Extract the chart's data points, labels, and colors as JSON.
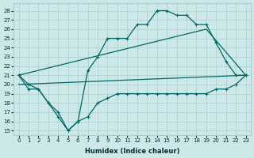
{
  "xlabel": "Humidex (Indice chaleur)",
  "background_color": "#cce8e8",
  "grid_color": "#aacece",
  "line_color": "#006666",
  "xlim": [
    -0.5,
    23.5
  ],
  "ylim": [
    14.5,
    28.8
  ],
  "yticks": [
    15,
    16,
    17,
    18,
    19,
    20,
    21,
    22,
    23,
    24,
    25,
    26,
    27,
    28
  ],
  "xticks": [
    0,
    1,
    2,
    3,
    4,
    5,
    6,
    7,
    8,
    9,
    10,
    11,
    12,
    13,
    14,
    15,
    16,
    17,
    18,
    19,
    20,
    21,
    22,
    23
  ],
  "curve1_x": [
    0,
    1,
    2,
    3,
    4,
    5,
    6,
    7,
    8,
    9,
    10,
    11,
    12,
    13,
    14,
    15,
    16,
    17,
    18,
    19,
    20,
    21,
    22,
    23
  ],
  "curve1_y": [
    21,
    19.5,
    19.5,
    18,
    16.5,
    15,
    16,
    16.5,
    18,
    18.5,
    19,
    19,
    19,
    19,
    19,
    19,
    19,
    19,
    19,
    19,
    19.5,
    19.5,
    20,
    21
  ],
  "curve2_x": [
    0,
    1,
    2,
    3,
    4,
    5,
    6,
    7,
    8,
    9,
    10,
    11,
    12,
    13,
    14,
    15,
    16,
    17,
    18,
    19,
    20,
    21,
    22,
    23
  ],
  "curve2_y": [
    21,
    20,
    19.5,
    18,
    17,
    15,
    16,
    21.5,
    23,
    25,
    25,
    25,
    26.5,
    26.5,
    28,
    28,
    27.5,
    27.5,
    26.5,
    26.5,
    24.5,
    22.5,
    21,
    21
  ],
  "line1_x": [
    0,
    23
  ],
  "line1_y": [
    20,
    21
  ],
  "line2_x": [
    0,
    19,
    23
  ],
  "line2_y": [
    21,
    26,
    21
  ]
}
